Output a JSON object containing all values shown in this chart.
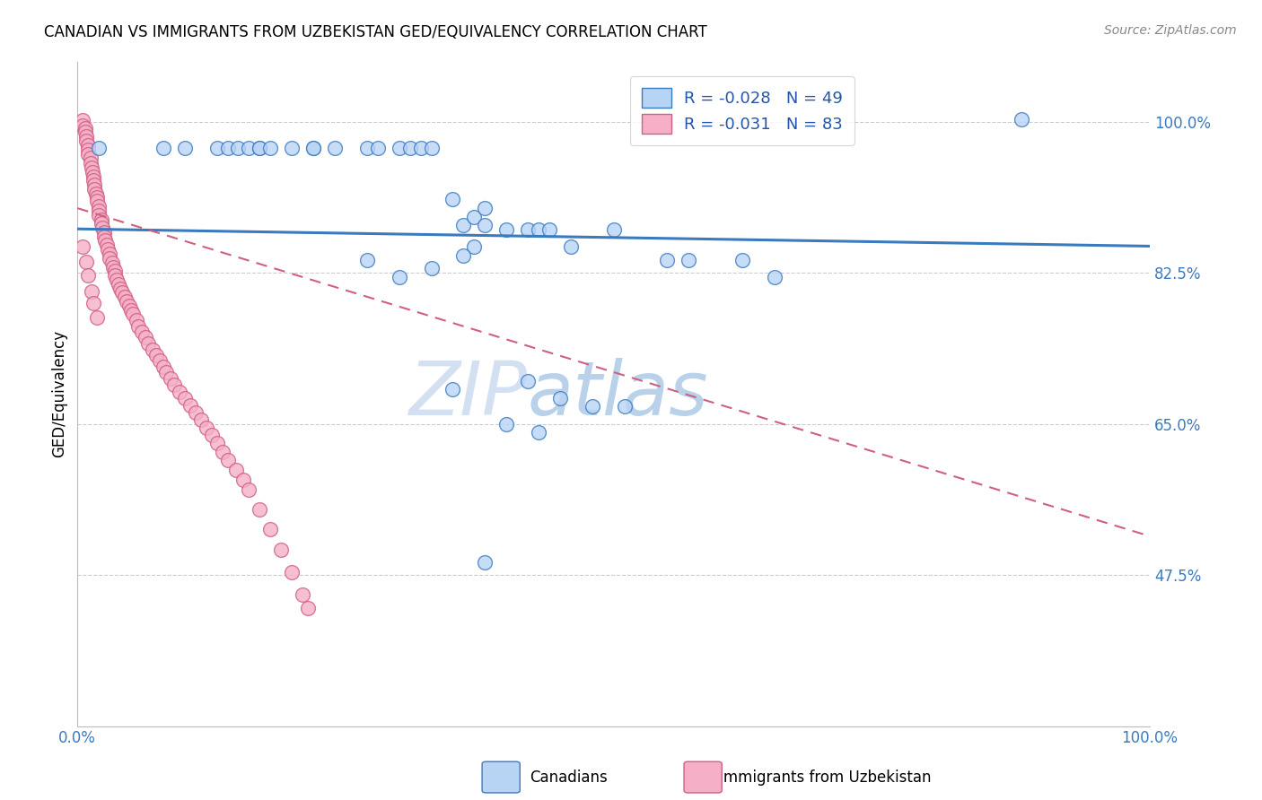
{
  "title": "CANADIAN VS IMMIGRANTS FROM UZBEKISTAN GED/EQUIVALENCY CORRELATION CHART",
  "source": "Source: ZipAtlas.com",
  "ylabel": "GED/Equivalency",
  "xlim": [
    0.0,
    1.0
  ],
  "ylim": [
    0.3,
    1.07
  ],
  "yticks": [
    0.475,
    0.65,
    0.825,
    1.0
  ],
  "ytick_labels": [
    "47.5%",
    "65.0%",
    "82.5%",
    "100.0%"
  ],
  "xticks": [
    0.0,
    0.2,
    0.4,
    0.6,
    0.8,
    1.0
  ],
  "xtick_labels": [
    "0.0%",
    "",
    "",
    "",
    "",
    "100.0%"
  ],
  "legend_r_canadian": "-0.028",
  "legend_n_canadian": "49",
  "legend_r_uzbekistan": "-0.031",
  "legend_n_uzbekistan": "83",
  "canadian_color": "#b8d4f5",
  "uzbekistan_color": "#f5b0c8",
  "trend_canadian_color": "#3a7abf",
  "trend_uzbekistan_color": "#d06080",
  "watermark": "ZIPatlas",
  "canadian_points_x": [
    0.02,
    0.08,
    0.1,
    0.13,
    0.14,
    0.15,
    0.16,
    0.17,
    0.17,
    0.18,
    0.2,
    0.22,
    0.22,
    0.24,
    0.27,
    0.28,
    0.3,
    0.31,
    0.32,
    0.33,
    0.35,
    0.36,
    0.37,
    0.38,
    0.38,
    0.4,
    0.42,
    0.43,
    0.44,
    0.37,
    0.27,
    0.3,
    0.33,
    0.36,
    0.46,
    0.5,
    0.55,
    0.57,
    0.62,
    0.65,
    0.35,
    0.42,
    0.45,
    0.48,
    0.51,
    0.4,
    0.43,
    0.88,
    0.38
  ],
  "canadian_points_y": [
    0.97,
    0.97,
    0.97,
    0.97,
    0.97,
    0.97,
    0.97,
    0.97,
    0.97,
    0.97,
    0.97,
    0.97,
    0.97,
    0.97,
    0.97,
    0.97,
    0.97,
    0.97,
    0.97,
    0.97,
    0.91,
    0.88,
    0.89,
    0.88,
    0.9,
    0.875,
    0.875,
    0.875,
    0.875,
    0.855,
    0.84,
    0.82,
    0.83,
    0.845,
    0.855,
    0.875,
    0.84,
    0.84,
    0.84,
    0.82,
    0.69,
    0.7,
    0.68,
    0.67,
    0.67,
    0.65,
    0.64,
    1.003,
    0.49
  ],
  "uzbekistan_points_x": [
    0.005,
    0.005,
    0.007,
    0.007,
    0.008,
    0.008,
    0.01,
    0.01,
    0.01,
    0.012,
    0.012,
    0.013,
    0.014,
    0.015,
    0.015,
    0.016,
    0.016,
    0.017,
    0.018,
    0.018,
    0.02,
    0.02,
    0.02,
    0.022,
    0.022,
    0.023,
    0.025,
    0.025,
    0.026,
    0.027,
    0.028,
    0.03,
    0.03,
    0.032,
    0.033,
    0.035,
    0.035,
    0.037,
    0.038,
    0.04,
    0.042,
    0.044,
    0.046,
    0.048,
    0.05,
    0.052,
    0.055,
    0.057,
    0.06,
    0.063,
    0.066,
    0.07,
    0.073,
    0.077,
    0.08,
    0.083,
    0.087,
    0.09,
    0.095,
    0.1,
    0.105,
    0.11,
    0.115,
    0.12,
    0.125,
    0.13,
    0.135,
    0.14,
    0.148,
    0.155,
    0.16,
    0.17,
    0.18,
    0.19,
    0.2,
    0.21,
    0.215,
    0.005,
    0.008,
    0.01,
    0.013,
    0.015,
    0.018
  ],
  "uzbekistan_points_y": [
    1.002,
    0.996,
    0.993,
    0.988,
    0.983,
    0.978,
    0.973,
    0.968,
    0.962,
    0.958,
    0.952,
    0.947,
    0.942,
    0.937,
    0.932,
    0.927,
    0.922,
    0.917,
    0.913,
    0.908,
    0.902,
    0.897,
    0.892,
    0.887,
    0.882,
    0.877,
    0.872,
    0.867,
    0.863,
    0.858,
    0.852,
    0.847,
    0.842,
    0.837,
    0.832,
    0.827,
    0.822,
    0.817,
    0.812,
    0.807,
    0.802,
    0.797,
    0.792,
    0.787,
    0.782,
    0.777,
    0.77,
    0.763,
    0.757,
    0.75,
    0.743,
    0.736,
    0.73,
    0.723,
    0.716,
    0.71,
    0.703,
    0.695,
    0.687,
    0.68,
    0.672,
    0.663,
    0.655,
    0.646,
    0.637,
    0.628,
    0.618,
    0.608,
    0.597,
    0.585,
    0.574,
    0.551,
    0.528,
    0.504,
    0.478,
    0.452,
    0.437,
    0.855,
    0.838,
    0.822,
    0.803,
    0.79,
    0.773
  ],
  "trend_canadian_start_x": 0.0,
  "trend_canadian_end_x": 1.0,
  "trend_canadian_start_y": 0.876,
  "trend_canadian_end_y": 0.856,
  "trend_uzbekistan_start_x": 0.0,
  "trend_uzbekistan_end_x": 1.0,
  "trend_uzbekistan_start_y": 0.9,
  "trend_uzbekistan_end_y": 0.52
}
